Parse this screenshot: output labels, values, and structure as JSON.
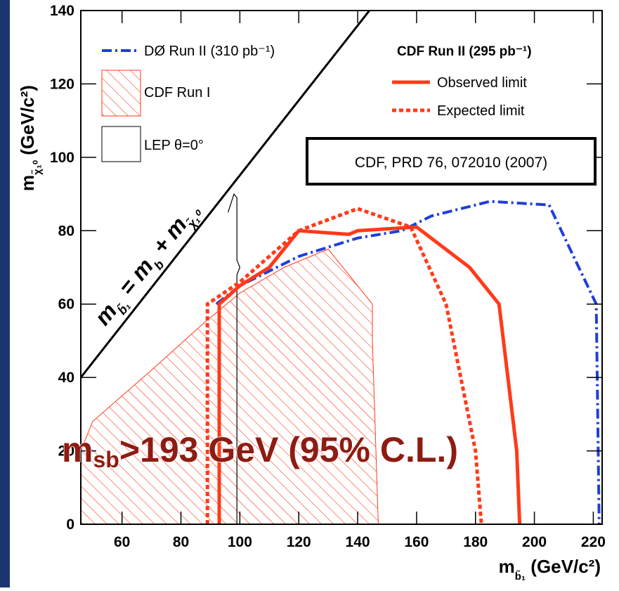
{
  "chart_data": {
    "type": "line",
    "x_label": {
      "main": "m",
      "sub": "b̃₁",
      "unit": " (GeV/c²)"
    },
    "y_label": {
      "main": "m",
      "sub": "χ̃₁⁰",
      "unit": " (GeV/c²)"
    },
    "xlim": [
      46,
      223
    ],
    "xticks": [
      60,
      80,
      100,
      120,
      140,
      160,
      180,
      200,
      220
    ],
    "ylim": [
      0,
      140
    ],
    "yticks": [
      0,
      20,
      40,
      60,
      80,
      100,
      120,
      140
    ],
    "legend_title": "CDF Run II (295 pb⁻¹)",
    "series": [
      {
        "name": "DØ Run II (310 pb⁻¹)",
        "color": "#1f3fd8",
        "style": "dash-dot",
        "x": [
          92,
          100,
          120,
          140,
          155,
          165,
          185,
          205,
          221,
          222
        ],
        "values": [
          60,
          65,
          73,
          78,
          80,
          84,
          88,
          87,
          60,
          0
        ]
      },
      {
        "name": "CDF Run I",
        "color": "#ff3a1a",
        "style": "hatch",
        "x": [
          46,
          50,
          70,
          88,
          100,
          115,
          130,
          145,
          145,
          147,
          46
        ],
        "values": [
          20,
          28,
          42,
          55,
          63,
          70,
          75,
          60,
          50,
          0,
          0
        ]
      },
      {
        "name": "LEP θ=0°",
        "color": "#000000",
        "style": "thin",
        "x": [
          99,
          99,
          100,
          99,
          99,
          98,
          96
        ],
        "values": [
          0,
          68,
          70,
          72,
          89,
          90,
          85
        ]
      },
      {
        "name": "Observed limit",
        "color": "#ff3a1a",
        "style": "solid",
        "x": [
          93,
          93,
          100,
          110,
          120,
          137,
          140,
          160,
          178,
          188,
          194,
          195
        ],
        "values": [
          0,
          60,
          65,
          70,
          80,
          79,
          80,
          81,
          70,
          60,
          20,
          0
        ]
      },
      {
        "name": "Expected limit",
        "color": "#ff3a1a",
        "style": "dotted",
        "x": [
          89,
          89,
          100,
          120,
          140,
          158,
          170,
          180,
          182
        ],
        "values": [
          0,
          60,
          66,
          80,
          86,
          81,
          60,
          20,
          0
        ]
      }
    ],
    "kinematic_line": {
      "x": [
        46,
        144
      ],
      "values": [
        40,
        140
      ],
      "label": [
        "m",
        "b̃₁",
        " = m",
        "b",
        " + m",
        "χ̃₁⁰"
      ]
    },
    "reference": "CDF, PRD 76, 072010 (2007)",
    "result": {
      "main": "m",
      "sub": "sb",
      "rest": ">193 GeV (95% C.L.)"
    }
  }
}
